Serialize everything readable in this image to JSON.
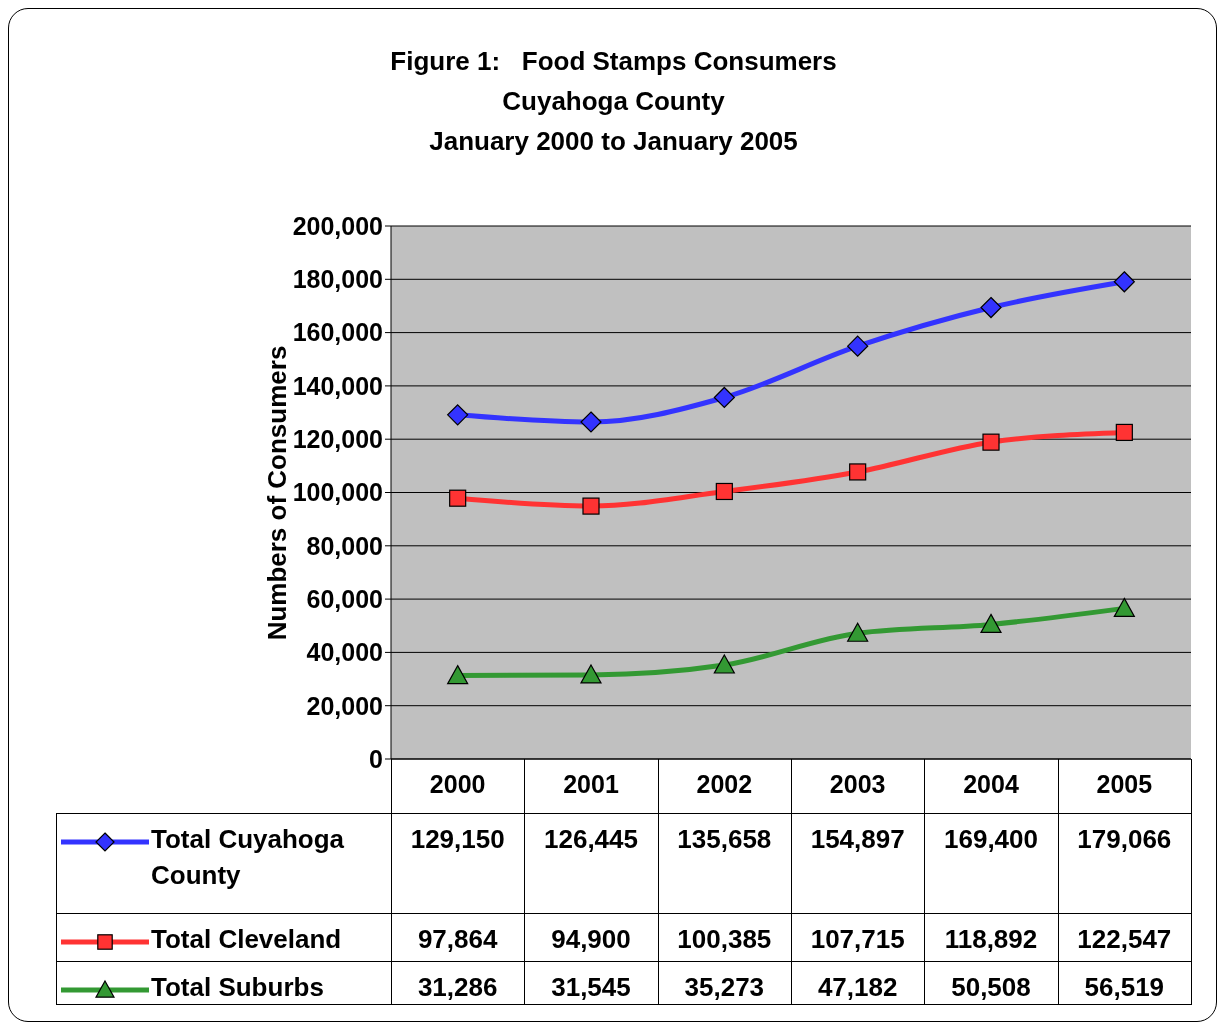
{
  "chart_data": {
    "type": "line",
    "title": "Figure 1:   Food Stamps Consumers",
    "subtitle": "Cuyahoga County\nJanuary 2000 to January 2005",
    "ylabel": "Numbers of Consumers",
    "categories": [
      "2000",
      "2001",
      "2002",
      "2003",
      "2004",
      "2005"
    ],
    "series": [
      {
        "name": "Total Cuyahoga County",
        "color": "#3333ff",
        "marker": "diamond",
        "values": [
          129150,
          126445,
          135658,
          154897,
          169400,
          179066
        ],
        "value_labels": [
          "129,150",
          "126,445",
          "135,658",
          "154,897",
          "169,400",
          "179,066"
        ]
      },
      {
        "name": "Total Cleveland",
        "color": "#ff3333",
        "marker": "square",
        "values": [
          97864,
          94900,
          100385,
          107715,
          118892,
          122547
        ],
        "value_labels": [
          "97,864",
          "94,900",
          "100,385",
          "107,715",
          "118,892",
          "122,547"
        ]
      },
      {
        "name": "Total Suburbs",
        "color": "#339933",
        "marker": "triangle",
        "values": [
          31286,
          31545,
          35273,
          47182,
          50508,
          56519
        ],
        "value_labels": [
          "31,286",
          "31,545",
          "35,273",
          "47,182",
          "50,508",
          "56,519"
        ]
      }
    ],
    "ylim": [
      0,
      200000
    ],
    "yticks": [
      0,
      {
        "value": 20000,
        "label": "20,000"
      },
      {
        "value": 40000,
        "label": "40,000"
      },
      {
        "value": 60000,
        "label": "60,000"
      },
      {
        "value": 80000,
        "label": "80,000"
      },
      {
        "value": 100000,
        "label": "100,000"
      },
      {
        "value": 120000,
        "label": "120,000"
      },
      {
        "value": 140000,
        "label": "140,000"
      },
      {
        "value": 160000,
        "label": "160,000"
      },
      {
        "value": 180000,
        "label": "180,000"
      },
      {
        "value": 200000,
        "label": "200,000"
      }
    ],
    "grid": "y",
    "legend": "bottom"
  }
}
